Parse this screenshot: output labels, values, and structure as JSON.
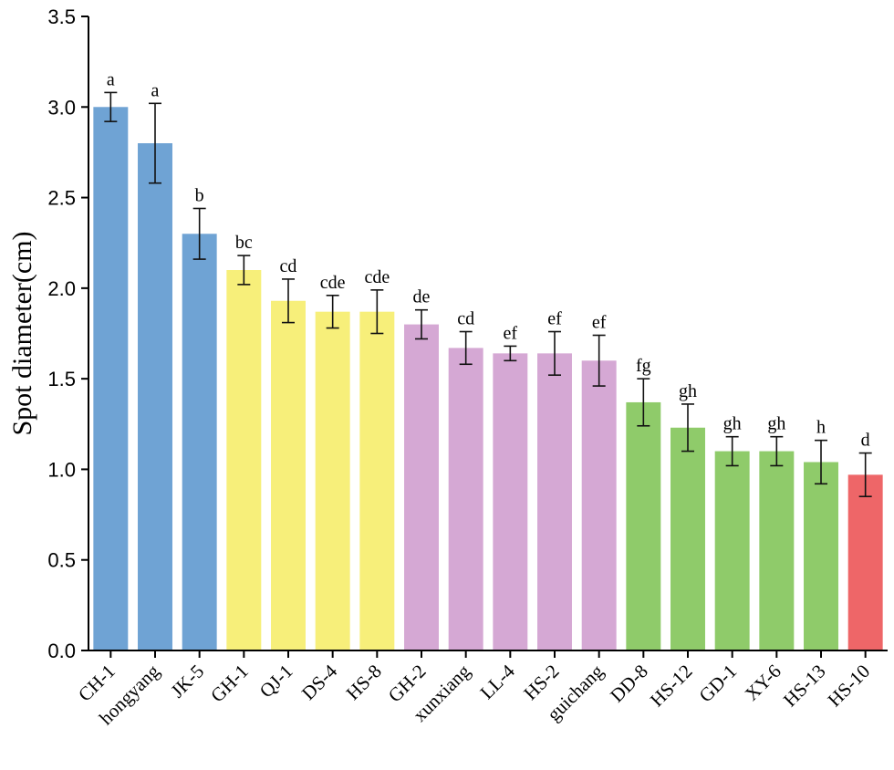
{
  "chart_data": {
    "type": "bar",
    "title": "",
    "xlabel": "",
    "ylabel": "Spot diameter(cm)",
    "ylim": [
      0,
      3.5
    ],
    "yticks": [
      "0.0",
      "0.5",
      "1.0",
      "1.5",
      "2.0",
      "2.5",
      "3.0",
      "3.5"
    ],
    "grid": false,
    "categories": [
      "CH-1",
      "hongyang",
      "JK-5",
      "GH-1",
      "QJ-1",
      "DS-4",
      "HS-8",
      "GH-2",
      "xunxiang",
      "LL-4",
      "HS-2",
      "guichang",
      "DD-8",
      "HS-12",
      "GD-1",
      "XY-6",
      "HS-13",
      "HS-10"
    ],
    "values": [
      3.0,
      2.8,
      2.3,
      2.1,
      1.93,
      1.87,
      1.87,
      1.8,
      1.67,
      1.64,
      1.64,
      1.6,
      1.37,
      1.23,
      1.1,
      1.1,
      1.04,
      0.97
    ],
    "errors": [
      0.08,
      0.22,
      0.14,
      0.08,
      0.12,
      0.09,
      0.12,
      0.08,
      0.09,
      0.04,
      0.12,
      0.14,
      0.13,
      0.13,
      0.08,
      0.08,
      0.12,
      0.12
    ],
    "letters": [
      "a",
      "a",
      "b",
      "bc",
      "cd",
      "cde",
      "cde",
      "de",
      "cd",
      "ef",
      "ef",
      "ef",
      "fg",
      "gh",
      "gh",
      "gh",
      "h",
      "d"
    ],
    "colors": [
      "#6fa3d4",
      "#6fa3d4",
      "#6fa3d4",
      "#f7ef7a",
      "#f7ef7a",
      "#f7ef7a",
      "#f7ef7a",
      "#d5a8d4",
      "#d5a8d4",
      "#d5a8d4",
      "#d5a8d4",
      "#d5a8d4",
      "#8fcb6a",
      "#8fcb6a",
      "#8fcb6a",
      "#8fcb6a",
      "#8fcb6a",
      "#ee6668"
    ]
  }
}
